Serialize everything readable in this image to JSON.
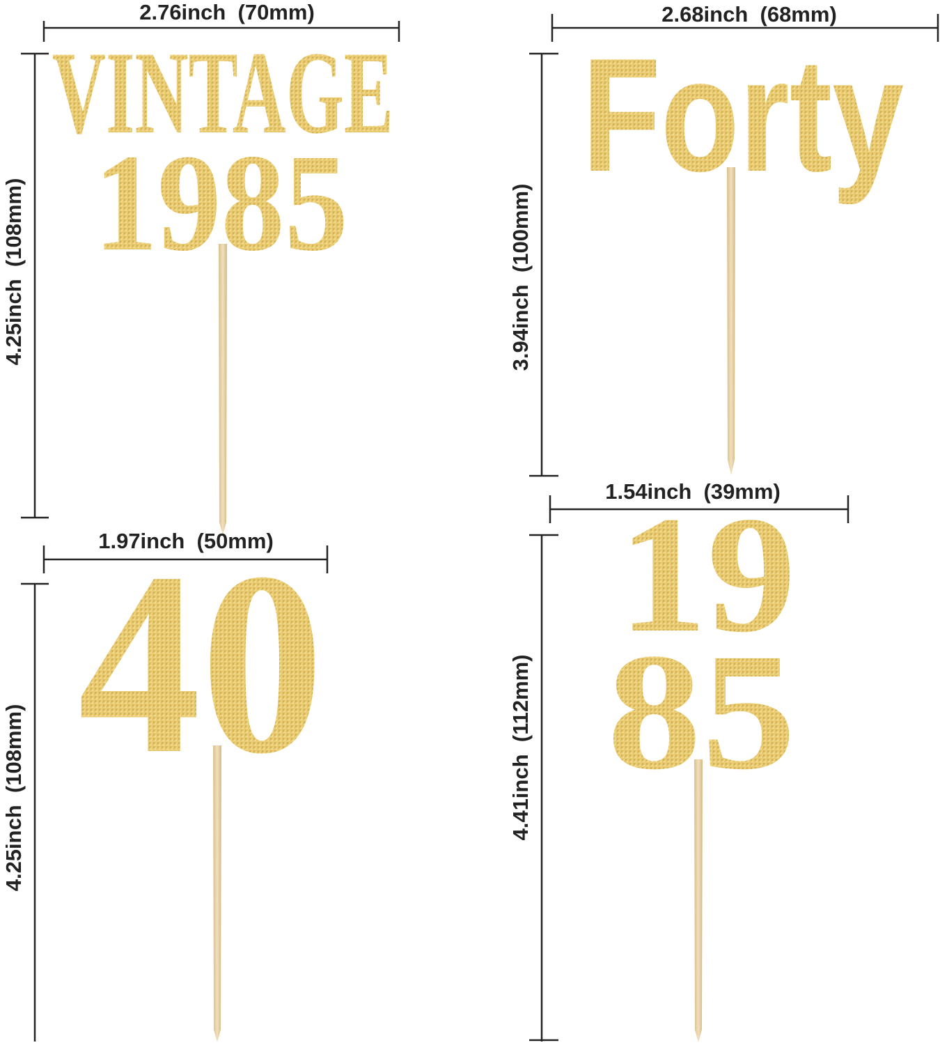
{
  "colors": {
    "gold_light": "#f4dd92",
    "gold": "#e2bf5e",
    "gold_dark": "#c9a13f",
    "stick": "#e9d5aa",
    "line": "#222222"
  },
  "toppers": [
    {
      "name": "vintage-1985",
      "lines": [
        "VINTAGE",
        "1985"
      ],
      "width_label": "2.76inch  (70mm)",
      "height_label": "4.25inch  (108mm)"
    },
    {
      "name": "forty",
      "lines": [
        "Forty"
      ],
      "width_label": "2.68inch  (68mm)",
      "height_label": "3.94inch  (100mm)"
    },
    {
      "name": "forty-number",
      "lines": [
        "40"
      ],
      "width_label": "1.97inch  (50mm)",
      "height_label": "4.25inch  (108mm)"
    },
    {
      "name": "1985-stacked",
      "lines": [
        "19",
        "85"
      ],
      "width_label": "1.54inch  (39mm)",
      "height_label": "4.41inch  (112mm)"
    }
  ]
}
